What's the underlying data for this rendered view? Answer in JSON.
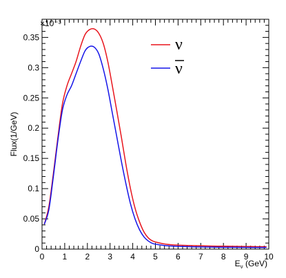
{
  "chart_data": {
    "type": "line",
    "xlabel": "Eν (GeV)",
    "xlabel_main": "E",
    "xlabel_sub": "ν",
    "xlabel_units": " (GeV)",
    "ylabel": "Flux(1/GeV)",
    "y_exponent_label": "×10⁻³",
    "xlim": [
      0,
      10
    ],
    "ylim": [
      0,
      0.38
    ],
    "x_ticks": [
      0,
      1,
      2,
      3,
      4,
      5,
      6,
      7,
      8,
      9,
      10
    ],
    "x_tick_labels": [
      "0",
      "1",
      "2",
      "3",
      "4",
      "5",
      "6",
      "7",
      "8",
      "9",
      "10"
    ],
    "y_ticks": [
      0,
      0.05,
      0.1,
      0.15,
      0.2,
      0.25,
      0.3,
      0.35
    ],
    "y_tick_labels": [
      "0",
      "0.05",
      "0.1",
      "0.15",
      "0.2",
      "0.25",
      "0.3",
      "0.35"
    ],
    "grid": false,
    "legend_position": "top-right",
    "series": [
      {
        "name": "ν",
        "color": "#e8141c",
        "x": [
          0.1,
          0.3,
          0.5,
          0.7,
          0.9,
          1.1,
          1.3,
          1.5,
          1.7,
          1.9,
          2.1,
          2.3,
          2.5,
          2.7,
          2.9,
          3.1,
          3.3,
          3.5,
          3.7,
          3.9,
          4.1,
          4.3,
          4.5,
          4.7,
          4.9,
          5.2,
          5.5,
          6.0,
          6.5,
          7.0,
          7.5,
          8.0,
          8.5,
          9.0,
          9.5,
          9.9
        ],
        "y": [
          0.041,
          0.07,
          0.125,
          0.185,
          0.24,
          0.27,
          0.29,
          0.31,
          0.335,
          0.355,
          0.363,
          0.364,
          0.357,
          0.34,
          0.31,
          0.27,
          0.228,
          0.185,
          0.14,
          0.1,
          0.068,
          0.045,
          0.028,
          0.018,
          0.013,
          0.01,
          0.008,
          0.0065,
          0.006,
          0.0055,
          0.005,
          0.0048,
          0.0045,
          0.0043,
          0.004,
          0.004
        ]
      },
      {
        "name": "ν̅",
        "color": "#1414e8",
        "x": [
          0.1,
          0.3,
          0.5,
          0.7,
          0.9,
          1.1,
          1.3,
          1.5,
          1.7,
          1.9,
          2.1,
          2.3,
          2.5,
          2.7,
          2.9,
          3.1,
          3.3,
          3.5,
          3.7,
          3.9,
          4.1,
          4.3,
          4.5,
          4.7,
          4.9,
          5.2,
          5.5,
          6.0,
          6.5,
          7.0,
          7.5,
          8.0,
          8.5,
          9.0,
          9.5,
          9.9
        ],
        "y": [
          0.041,
          0.065,
          0.12,
          0.18,
          0.23,
          0.255,
          0.27,
          0.29,
          0.31,
          0.328,
          0.335,
          0.334,
          0.323,
          0.298,
          0.265,
          0.225,
          0.185,
          0.145,
          0.108,
          0.075,
          0.05,
          0.032,
          0.02,
          0.013,
          0.009,
          0.007,
          0.0055,
          0.0045,
          0.004,
          0.0035,
          0.0033,
          0.003,
          0.003,
          0.0028,
          0.0027,
          0.0027
        ]
      }
    ]
  }
}
